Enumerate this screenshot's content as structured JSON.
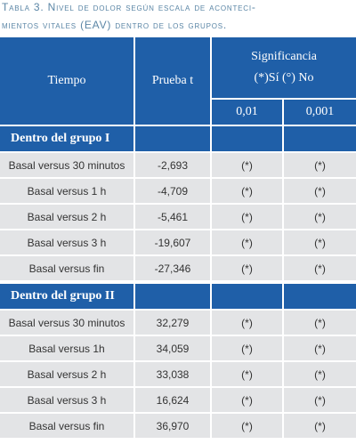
{
  "caption": [
    "Tabla 3. Nivel de dolor según escala de aconteci-",
    "mientos vitales (EAV) dentro de los grupos."
  ],
  "table": {
    "header": {
      "tiempo": "Tiempo",
      "prueba": "Prueba t",
      "significancia": [
        "Significancia",
        "(*)Sí (°) No"
      ],
      "levels": [
        "0,01",
        "0,001"
      ]
    },
    "groups": [
      {
        "label": "Dentro del grupo I",
        "rows": [
          [
            "Basal versus 30 minutos",
            "-2,693",
            "(*)",
            "(*)"
          ],
          [
            "Basal versus 1 h",
            "-4,709",
            "(*)",
            "(*)"
          ],
          [
            "Basal versus 2 h",
            "-5,461",
            "(*)",
            "(*)"
          ],
          [
            "Basal versus 3 h",
            "-19,607",
            "(*)",
            "(*)"
          ],
          [
            "Basal versus fin",
            "-27,346",
            "(*)",
            "(*)"
          ]
        ]
      },
      {
        "label": "Dentro del grupo II",
        "rows": [
          [
            "Basal versus 30 minutos",
            "32,279",
            "(*)",
            "(*)"
          ],
          [
            "Basal versus 1h",
            "34,059",
            "(*)",
            "(*)"
          ],
          [
            "Basal versus 2 h",
            "33,038",
            "(*)",
            "(*)"
          ],
          [
            "Basal versus 3 h",
            "16,624",
            "(*)",
            "(*)"
          ],
          [
            "Basal versus fin",
            "36,970",
            "(*)",
            "(*)"
          ]
        ]
      }
    ]
  }
}
